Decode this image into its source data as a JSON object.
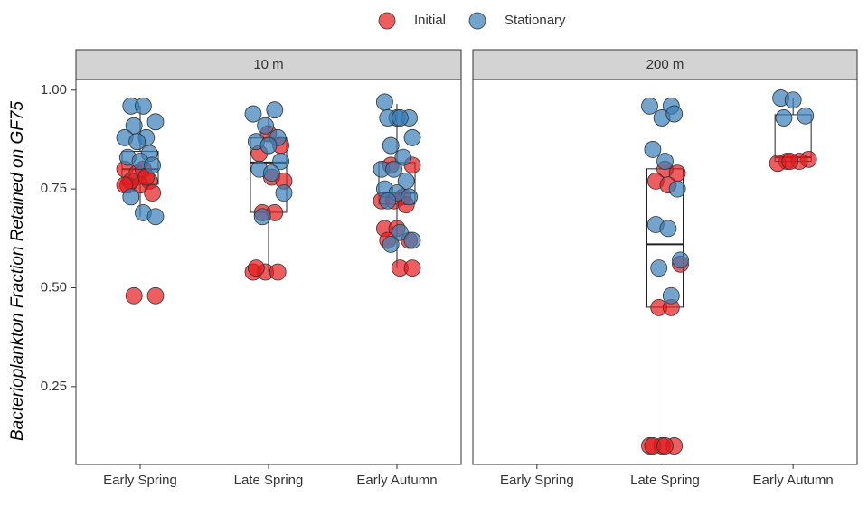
{
  "chart_data": {
    "type": "box",
    "ylabel": "Bacterioplankton Fraction Retained on GF75",
    "legend_position": "top",
    "ylim": [
      0.053,
      1.027
    ],
    "yticks": [
      0.25,
      {
        "value": 0.5,
        "label": "0.50"
      },
      0.75,
      {
        "value": 1,
        "label": "1.00"
      }
    ],
    "categories": [
      "Early Spring",
      "Late Spring",
      "Early Autumn"
    ],
    "box_color": "#222222",
    "facets": [
      {
        "title": "10 m",
        "boxes": [
          {
            "low": 0.68,
            "q1": 0.762,
            "median": 0.8,
            "q3": 0.845,
            "high": 0.96
          },
          {
            "low": 0.54,
            "q1": 0.691,
            "median": 0.817,
            "q3": 0.879,
            "high": 0.95
          },
          {
            "low": 0.55,
            "q1": 0.712,
            "median": 0.74,
            "q3": 0.817,
            "high": 0.965
          }
        ]
      },
      {
        "title": "200 m",
        "boxes": [
          null,
          {
            "low": 0.1,
            "q1": 0.451,
            "median": 0.61,
            "q3": 0.801,
            "high": 0.96
          },
          {
            "low": 0.815,
            "q1": 0.82,
            "median": 0.83,
            "q3": 0.938,
            "high": 0.98
          }
        ]
      }
    ],
    "series": [
      {
        "name": "Initial",
        "color": "#e41a1c",
        "values": [
          [
            [
              0.8,
              0.79,
              0.77,
              0.76,
              0.76,
              0.74,
              0.77,
              0.8,
              0.48,
              0.48,
              0.78,
              0.76
            ],
            [
              0.89,
              0.86,
              0.84,
              0.78,
              0.77,
              0.69,
              0.69,
              0.54,
              0.54,
              0.54,
              0.55
            ],
            [
              0.81,
              0.81,
              0.73,
              0.72,
              0.72,
              0.71,
              0.65,
              0.65,
              0.62,
              0.62,
              0.55,
              0.55
            ]
          ],
          [
            [],
            [
              0.8,
              0.79,
              0.77,
              0.76,
              0.56,
              0.45,
              0.45,
              0.1,
              0.1,
              0.1,
              0.1,
              0.1
            ],
            [
              0.825,
              0.82,
              0.82,
              0.815,
              0.82
            ]
          ]
        ]
      },
      {
        "name": "Stationary",
        "color": "#377eb8",
        "values": [
          [
            [
              0.96,
              0.96,
              0.92,
              0.91,
              0.88,
              0.88,
              0.87,
              0.84,
              0.83,
              0.82,
              0.81,
              0.73,
              0.69,
              0.68
            ],
            [
              0.95,
              0.94,
              0.91,
              0.88,
              0.87,
              0.86,
              0.82,
              0.8,
              0.79,
              0.74,
              0.68
            ],
            [
              0.97,
              0.93,
              0.93,
              0.93,
              0.93,
              0.88,
              0.86,
              0.83,
              0.8,
              0.8,
              0.77,
              0.75,
              0.74,
              0.73,
              0.72,
              0.64,
              0.62,
              0.61
            ]
          ],
          [
            [],
            [
              0.96,
              0.96,
              0.93,
              0.94,
              0.85,
              0.82,
              0.75,
              0.66,
              0.65,
              0.57,
              0.55,
              0.48
            ],
            [
              0.98,
              0.975,
              0.935,
              0.93
            ]
          ]
        ]
      }
    ]
  }
}
